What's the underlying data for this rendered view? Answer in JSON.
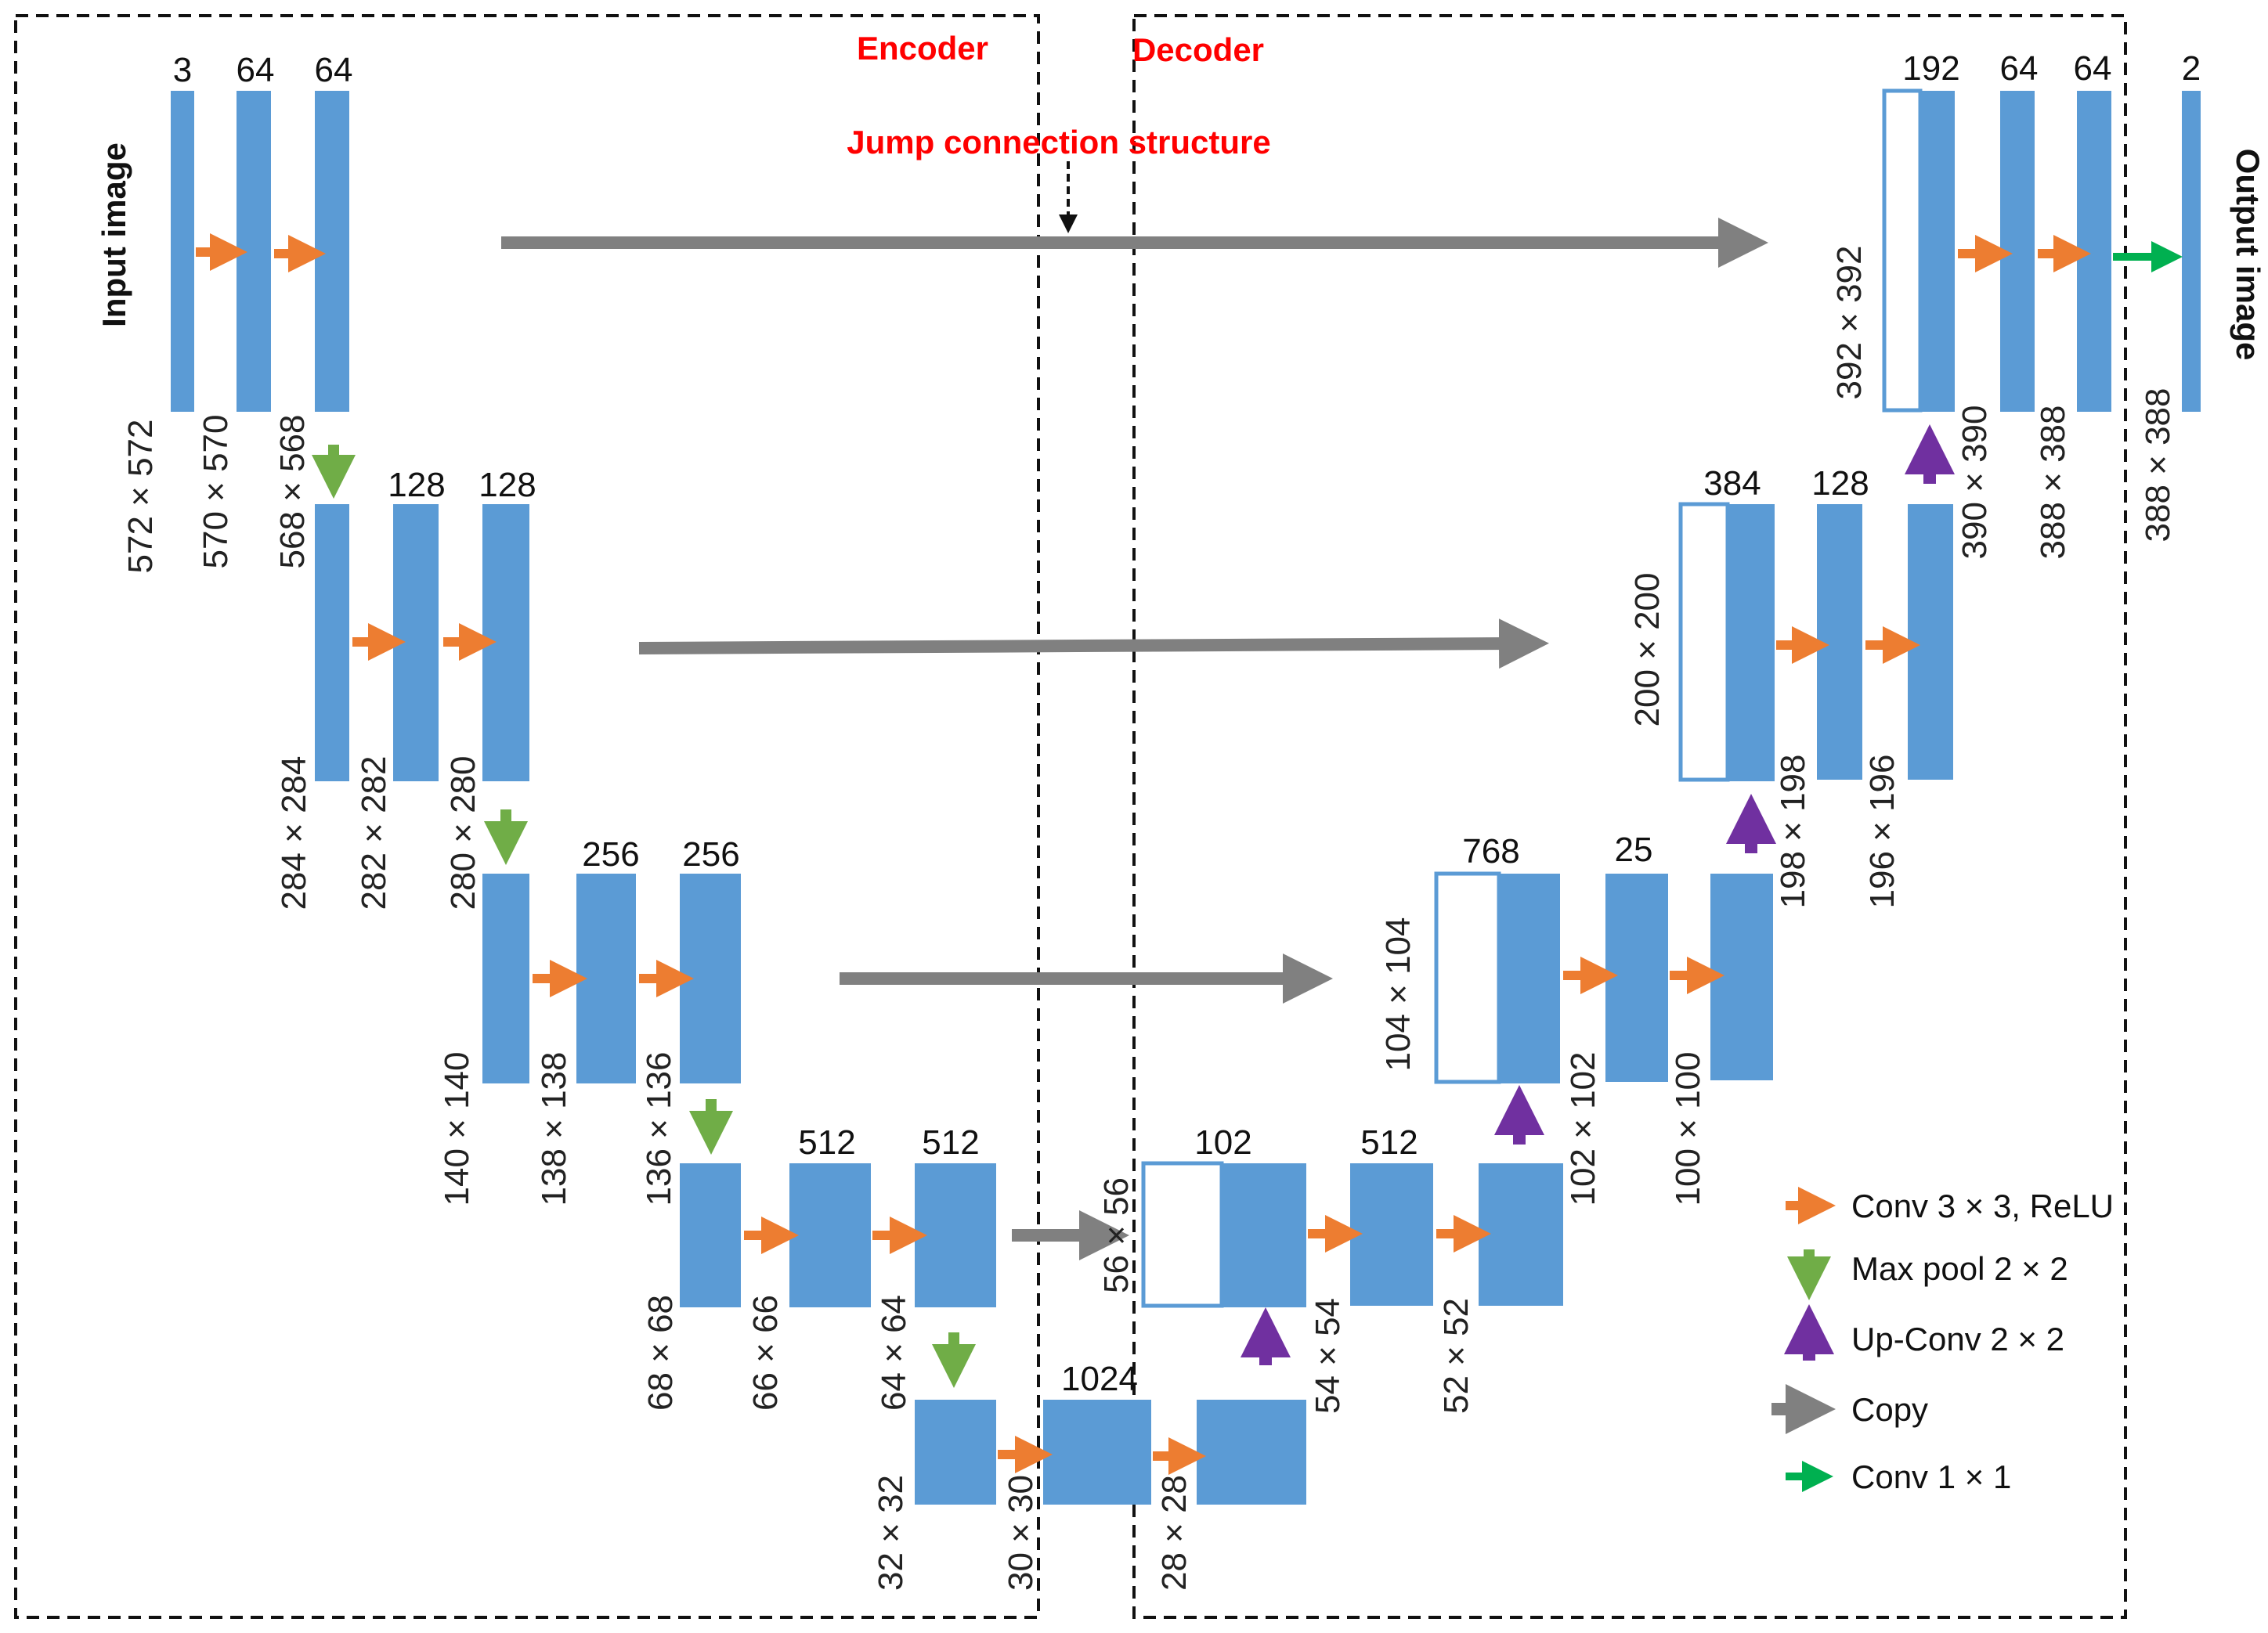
{
  "sections": {
    "encoder": "Encoder",
    "decoder": "Decoder",
    "jump": "Jump connection structure"
  },
  "side_labels": {
    "input": "Input image",
    "output": "Output image"
  },
  "channels": {
    "c1": "3",
    "c2": "64",
    "c3": "64",
    "c4": "128",
    "c5": "128",
    "c6": "256",
    "c7": "256",
    "c8": "512",
    "c9": "512",
    "c10": "1024",
    "c11": "102",
    "c12": "512",
    "c13": "768",
    "c14": "25",
    "c15": "384",
    "c16": "128",
    "c17": "192",
    "c18": "64",
    "c19": "64",
    "c20": "2"
  },
  "sizes": {
    "s1": "572 × 572",
    "s2": "570 × 570",
    "s3": "568 × 568",
    "s4": "284 × 284",
    "s5": "282 × 282",
    "s6": "280 × 280",
    "s7": "140 × 140",
    "s8": "138 × 138",
    "s9": "136 × 136",
    "s10": "68 × 68",
    "s11": "66 × 66",
    "s12": "64 × 64",
    "s13": "32 × 32",
    "s14": "30 × 30",
    "s15": "28 × 28",
    "s16": "56 × 56",
    "s17": "54 × 54",
    "s18": "52 × 52",
    "s19": "104 × 104",
    "s20": "102 × 102",
    "s21": "100 × 100",
    "s22": "200 × 200",
    "s23": "198 × 198",
    "s24": "196 × 196",
    "s25": "392 × 392",
    "s26": "390 × 390",
    "s27": "388 × 388",
    "s28": "388 × 388"
  },
  "legend": {
    "conv": "Conv 3 × 3, ReLU",
    "pool": "Max pool 2 × 2",
    "upconv": "Up-Conv 2 × 2",
    "copy": "Copy",
    "conv1": "Conv 1 × 1"
  },
  "colors": {
    "block": "#5b9bd5",
    "conv_arrow": "#ed7d31",
    "pool_arrow": "#70ad47",
    "upconv_arrow": "#7030a0",
    "copy_arrow": "#808080",
    "conv1_arrow": "#00b050",
    "section_text": "#ff0000"
  }
}
